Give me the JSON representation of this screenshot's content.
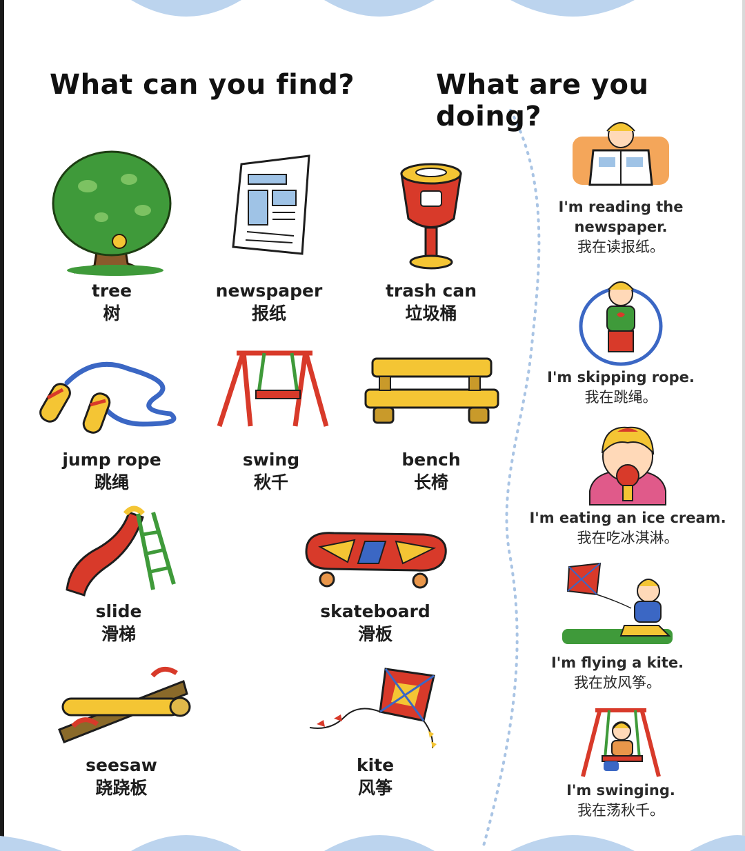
{
  "left": {
    "heading": "What can you find?",
    "items": [
      {
        "en": "tree",
        "zh": "树",
        "icon": "tree-icon"
      },
      {
        "en": "newspaper",
        "zh": "报纸",
        "icon": "newspaper-icon"
      },
      {
        "en": "trash can",
        "zh": "垃圾桶",
        "icon": "trash-can-icon"
      },
      {
        "en": "jump rope",
        "zh": "跳绳",
        "icon": "jump-rope-icon"
      },
      {
        "en": "swing",
        "zh": "秋千",
        "icon": "swing-icon"
      },
      {
        "en": "bench",
        "zh": "长椅",
        "icon": "bench-icon"
      },
      {
        "en": "slide",
        "zh": "滑梯",
        "icon": "slide-icon"
      },
      {
        "en": "skateboard",
        "zh": "滑板",
        "icon": "skateboard-icon"
      },
      {
        "en": "seesaw",
        "zh": "跷跷板",
        "icon": "seesaw-icon"
      },
      {
        "en": "kite",
        "zh": "风筝",
        "icon": "kite-icon"
      }
    ]
  },
  "right": {
    "heading": "What are you doing?",
    "activities": [
      {
        "en1": "I'm reading the",
        "en2": "newspaper.",
        "zh": "我在读报纸。",
        "icon": "child-reading-icon"
      },
      {
        "en1": "I'm skipping rope.",
        "zh": "我在跳绳。",
        "icon": "child-skipping-icon"
      },
      {
        "en1": "I'm eating an ice cream.",
        "zh": "我在吃冰淇淋。",
        "icon": "child-eating-icon"
      },
      {
        "en1": "I'm flying a kite.",
        "zh": "我在放风筝。",
        "icon": "child-kite-icon"
      },
      {
        "en1": "I'm swinging.",
        "zh": "我在荡秋千。",
        "icon": "child-swinging-icon"
      }
    ]
  },
  "colors": {
    "wave": "#bcd4ee",
    "divider_dots": "#a9c4e4",
    "red": "#d83a2a",
    "yellow": "#f4c534",
    "green": "#3f9a3a",
    "blue": "#3b67c4"
  }
}
